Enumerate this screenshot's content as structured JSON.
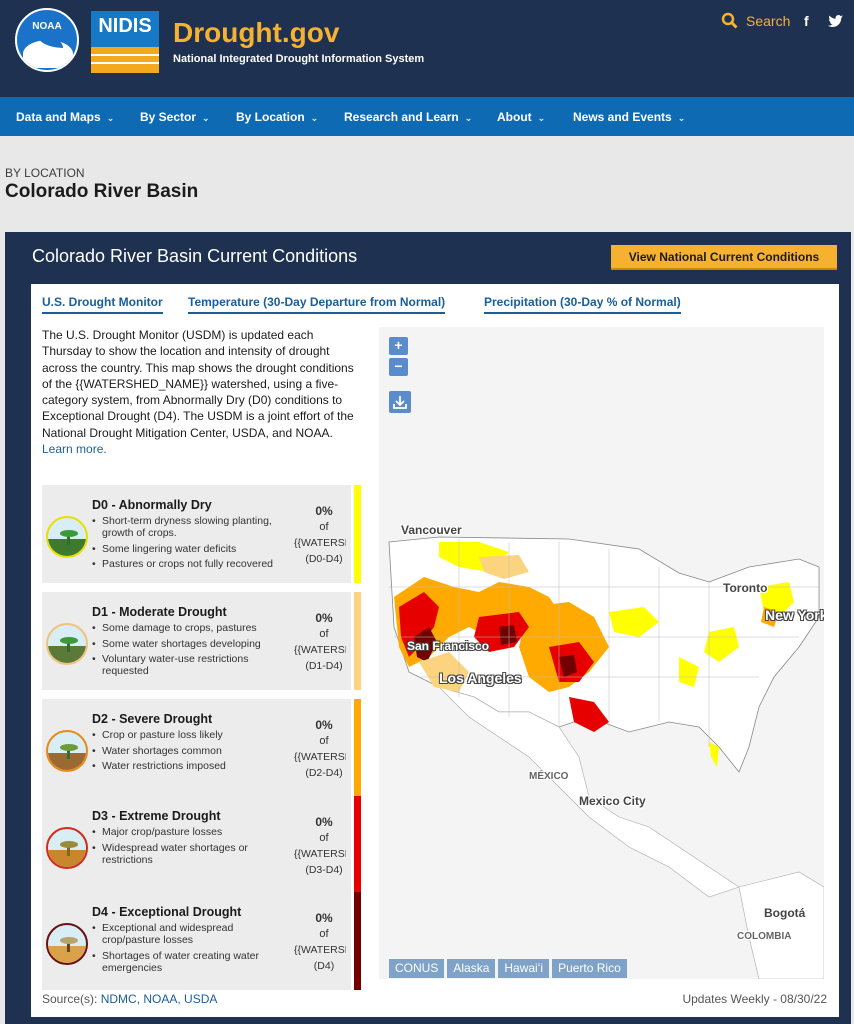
{
  "header": {
    "noaa_logo_text": "NOAA",
    "nidis_logo_text": "NIDIS",
    "brand": "Drought.gov",
    "tagline": "National Integrated Drought Information System",
    "search_label": "Search",
    "social": [
      {
        "name": "facebook-icon",
        "glyph": "f"
      },
      {
        "name": "twitter-icon",
        "glyph": "🐦"
      }
    ]
  },
  "nav": {
    "items": [
      {
        "label": "Data and Maps"
      },
      {
        "label": "By Sector"
      },
      {
        "label": "By Location"
      },
      {
        "label": "Research and Learn"
      },
      {
        "label": "About"
      },
      {
        "label": "News and Events"
      }
    ]
  },
  "breadcrumb": "BY LOCATION",
  "page_title": "Colorado River Basin",
  "panel": {
    "title": "Colorado River Basin Current Conditions",
    "cta": "View National Current Conditions",
    "tabs": [
      {
        "label": "U.S. Drought Monitor"
      },
      {
        "label": "Temperature (30-Day Departure from Normal)"
      },
      {
        "label": "Precipitation (30-Day % of Normal)"
      }
    ],
    "description": "The U.S. Drought Monitor (USDM) is updated each Thursday to show the location and intensity of drought across the country. This map shows the drought conditions of the {{WATERSHED_NAME}} watershed, using a five-category system, from Abnormally Dry (D0) conditions to Exceptional Drought (D4). The USDM is a joint effort of the National Drought Mitigation Center, USDA, and NOAA.",
    "learn_more": "Learn more.",
    "categories": [
      {
        "title": "D0 - Abnormally Dry",
        "bullets": [
          "Short-term dryness slowing planting, growth of crops.",
          "Some lingering water deficits",
          "Pastures or crops not fully recovered"
        ],
        "pct": "0%",
        "of": "of",
        "ws": "{{WATERSHED_NAME}}",
        "range": "(D0-D4)",
        "color": "#ffff00"
      },
      {
        "title": "D1 - Moderate Drought",
        "bullets": [
          "Some damage to crops, pastures",
          "Some water shortages developing",
          "Voluntary water-use restrictions requested"
        ],
        "pct": "0%",
        "of": "of",
        "ws": "{{WATERSHED_NAME}}",
        "range": "(D1-D4)",
        "color": "#fcd37f"
      },
      {
        "title": "D2 - Severe Drought",
        "bullets": [
          "Crop or pasture loss likely",
          "Water shortages common",
          "Water restrictions imposed"
        ],
        "pct": "0%",
        "of": "of",
        "ws": "{{WATERSHED_NAME}}",
        "range": "(D2-D4)",
        "color": "#ffaa00"
      },
      {
        "title": "D3 - Extreme Drought",
        "bullets": [
          "Major crop/pasture losses",
          "Widespread water shortages or restrictions"
        ],
        "pct": "0%",
        "of": "of",
        "ws": "{{WATERSHED_NAME}}",
        "range": "(D3-D4)",
        "color": "#e60000"
      },
      {
        "title": "D4 - Exceptional Drought",
        "bullets": [
          "Exceptional and widespread crop/pasture losses",
          "Shortages of water creating water emergencies"
        ],
        "pct": "0%",
        "of": "of",
        "ws": "{{WATERSHED_NAME}}",
        "range": "(D4)",
        "color": "#730000"
      }
    ],
    "map": {
      "zoom_in": "+",
      "zoom_out": "−",
      "labels": {
        "vancouver": "Vancouver",
        "toronto": "Toronto",
        "new_york": "New York",
        "san_francisco": "San Francisco",
        "los_angeles": "Los Angeles",
        "mexico": "MÉXICO",
        "mexico_city": "Mexico City",
        "bogota": "Bogotá",
        "colombia": "COLOMBIA"
      },
      "regions": [
        {
          "label": "CONUS"
        },
        {
          "label": "Alaska"
        },
        {
          "label": "Hawaiʻi"
        },
        {
          "label": "Puerto Rico"
        }
      ]
    },
    "source_prefix": "Source(s):",
    "sources": "NDMC, NOAA, USDA",
    "updates": "Updates Weekly  -  08/30/22"
  }
}
